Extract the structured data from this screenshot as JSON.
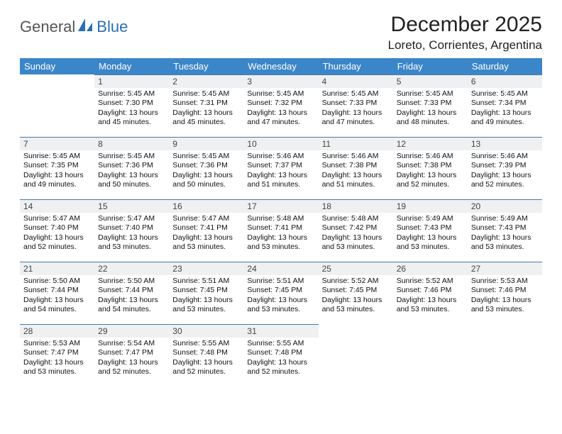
{
  "logo": {
    "part1": "General",
    "part2": "Blue"
  },
  "title": "December 2025",
  "location": "Loreto, Corrientes, Argentina",
  "colors": {
    "header_bg": "#3b86c8",
    "header_text": "#ffffff",
    "daynum_bg": "#eef0f2",
    "daynum_text": "#444444",
    "cell_border": "#4a7aa6",
    "logo_blue": "#2a6db5",
    "logo_gray": "#555555"
  },
  "weekdays": [
    "Sunday",
    "Monday",
    "Tuesday",
    "Wednesday",
    "Thursday",
    "Friday",
    "Saturday"
  ],
  "weeks": [
    [
      null,
      {
        "n": "1",
        "sr": "5:45 AM",
        "ss": "7:30 PM",
        "dl": "13 hours and 45 minutes."
      },
      {
        "n": "2",
        "sr": "5:45 AM",
        "ss": "7:31 PM",
        "dl": "13 hours and 45 minutes."
      },
      {
        "n": "3",
        "sr": "5:45 AM",
        "ss": "7:32 PM",
        "dl": "13 hours and 47 minutes."
      },
      {
        "n": "4",
        "sr": "5:45 AM",
        "ss": "7:33 PM",
        "dl": "13 hours and 47 minutes."
      },
      {
        "n": "5",
        "sr": "5:45 AM",
        "ss": "7:33 PM",
        "dl": "13 hours and 48 minutes."
      },
      {
        "n": "6",
        "sr": "5:45 AM",
        "ss": "7:34 PM",
        "dl": "13 hours and 49 minutes."
      }
    ],
    [
      {
        "n": "7",
        "sr": "5:45 AM",
        "ss": "7:35 PM",
        "dl": "13 hours and 49 minutes."
      },
      {
        "n": "8",
        "sr": "5:45 AM",
        "ss": "7:36 PM",
        "dl": "13 hours and 50 minutes."
      },
      {
        "n": "9",
        "sr": "5:45 AM",
        "ss": "7:36 PM",
        "dl": "13 hours and 50 minutes."
      },
      {
        "n": "10",
        "sr": "5:46 AM",
        "ss": "7:37 PM",
        "dl": "13 hours and 51 minutes."
      },
      {
        "n": "11",
        "sr": "5:46 AM",
        "ss": "7:38 PM",
        "dl": "13 hours and 51 minutes."
      },
      {
        "n": "12",
        "sr": "5:46 AM",
        "ss": "7:38 PM",
        "dl": "13 hours and 52 minutes."
      },
      {
        "n": "13",
        "sr": "5:46 AM",
        "ss": "7:39 PM",
        "dl": "13 hours and 52 minutes."
      }
    ],
    [
      {
        "n": "14",
        "sr": "5:47 AM",
        "ss": "7:40 PM",
        "dl": "13 hours and 52 minutes."
      },
      {
        "n": "15",
        "sr": "5:47 AM",
        "ss": "7:40 PM",
        "dl": "13 hours and 53 minutes."
      },
      {
        "n": "16",
        "sr": "5:47 AM",
        "ss": "7:41 PM",
        "dl": "13 hours and 53 minutes."
      },
      {
        "n": "17",
        "sr": "5:48 AM",
        "ss": "7:41 PM",
        "dl": "13 hours and 53 minutes."
      },
      {
        "n": "18",
        "sr": "5:48 AM",
        "ss": "7:42 PM",
        "dl": "13 hours and 53 minutes."
      },
      {
        "n": "19",
        "sr": "5:49 AM",
        "ss": "7:43 PM",
        "dl": "13 hours and 53 minutes."
      },
      {
        "n": "20",
        "sr": "5:49 AM",
        "ss": "7:43 PM",
        "dl": "13 hours and 53 minutes."
      }
    ],
    [
      {
        "n": "21",
        "sr": "5:50 AM",
        "ss": "7:44 PM",
        "dl": "13 hours and 54 minutes."
      },
      {
        "n": "22",
        "sr": "5:50 AM",
        "ss": "7:44 PM",
        "dl": "13 hours and 54 minutes."
      },
      {
        "n": "23",
        "sr": "5:51 AM",
        "ss": "7:45 PM",
        "dl": "13 hours and 53 minutes."
      },
      {
        "n": "24",
        "sr": "5:51 AM",
        "ss": "7:45 PM",
        "dl": "13 hours and 53 minutes."
      },
      {
        "n": "25",
        "sr": "5:52 AM",
        "ss": "7:45 PM",
        "dl": "13 hours and 53 minutes."
      },
      {
        "n": "26",
        "sr": "5:52 AM",
        "ss": "7:46 PM",
        "dl": "13 hours and 53 minutes."
      },
      {
        "n": "27",
        "sr": "5:53 AM",
        "ss": "7:46 PM",
        "dl": "13 hours and 53 minutes."
      }
    ],
    [
      {
        "n": "28",
        "sr": "5:53 AM",
        "ss": "7:47 PM",
        "dl": "13 hours and 53 minutes."
      },
      {
        "n": "29",
        "sr": "5:54 AM",
        "ss": "7:47 PM",
        "dl": "13 hours and 52 minutes."
      },
      {
        "n": "30",
        "sr": "5:55 AM",
        "ss": "7:48 PM",
        "dl": "13 hours and 52 minutes."
      },
      {
        "n": "31",
        "sr": "5:55 AM",
        "ss": "7:48 PM",
        "dl": "13 hours and 52 minutes."
      },
      null,
      null,
      null
    ]
  ],
  "labels": {
    "sunrise": "Sunrise:",
    "sunset": "Sunset:",
    "daylight": "Daylight:"
  }
}
